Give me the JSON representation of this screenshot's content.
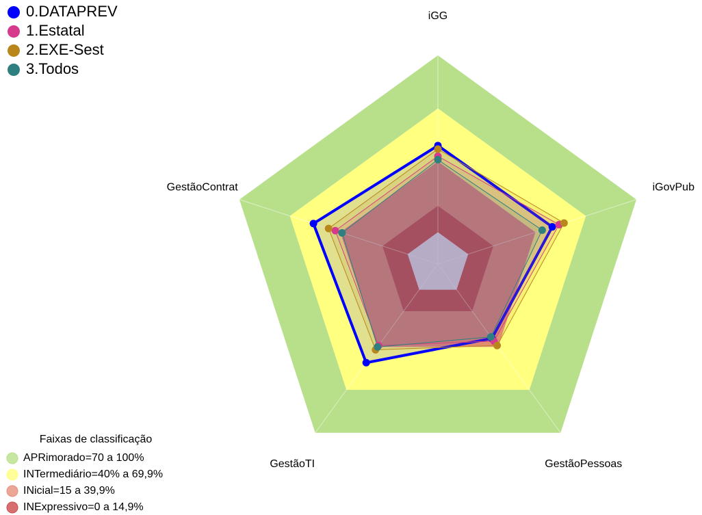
{
  "chart_data": {
    "type": "radar",
    "categories": [
      "iGG",
      "iGovPub",
      "GestãoPessoas",
      "GestãoTI",
      "GestãoContrat"
    ],
    "rlim": [
      -18,
      100
    ],
    "series": [
      {
        "name": "0.DATAPREV",
        "color": "#0000ff",
        "values": [
          49,
          50,
          34,
          51,
          56
        ]
      },
      {
        "name": "1.Estatal",
        "color": "#d63a8c",
        "values": [
          43,
          54,
          36,
          39,
          43
        ]
      },
      {
        "name": "2.EXE-Sest",
        "color": "#b8861b",
        "values": [
          47,
          57,
          39,
          42,
          47
        ]
      },
      {
        "name": "3.Todos",
        "color": "#2e8080",
        "values": [
          41,
          44,
          33,
          40,
          39
        ]
      }
    ],
    "bands_title": "Faixas de classificação",
    "bands": [
      {
        "name": "APRimorado=70 a 100%",
        "from": 70,
        "to": 100,
        "color": "#b8e08a"
      },
      {
        "name": "INTermediário=40% a 69,9%",
        "from": 40,
        "to": 70,
        "color": "#ffff80"
      },
      {
        "name": "INicial=15 a 39,9%",
        "from": 15,
        "to": 40,
        "color": "#e6907a"
      },
      {
        "name": "INExpressivo=0 a 14,9%",
        "from": 0,
        "to": 15,
        "color": "#cc4c4c"
      }
    ]
  }
}
